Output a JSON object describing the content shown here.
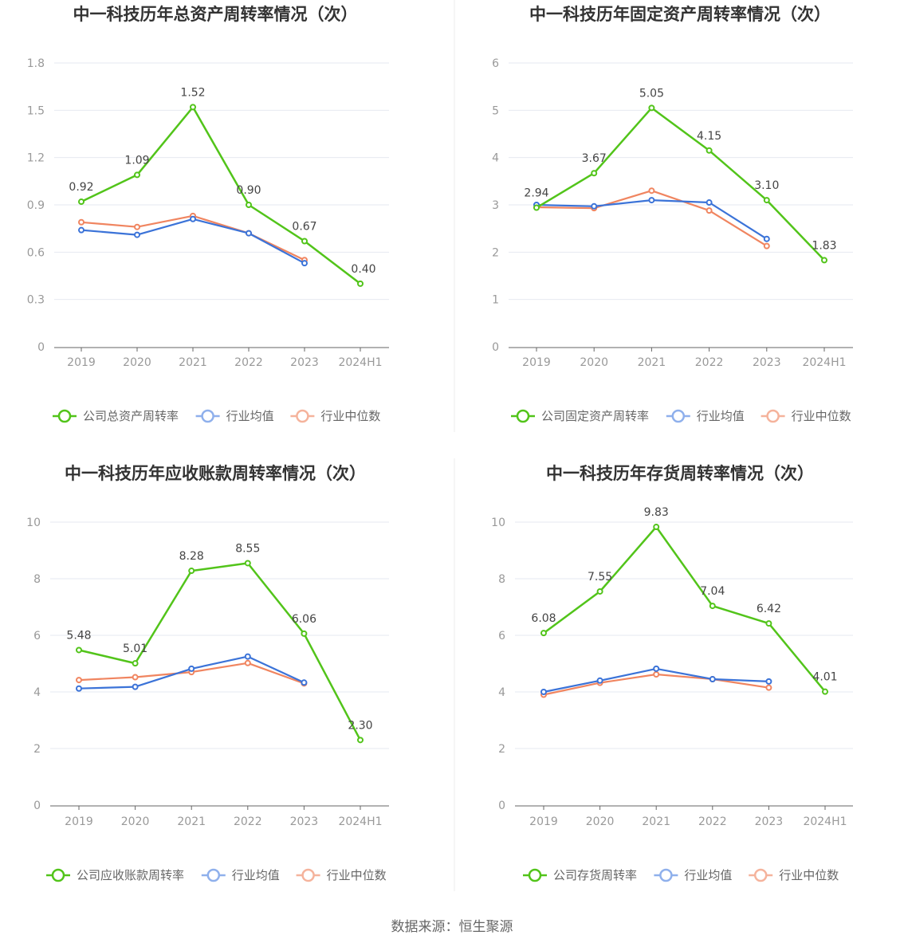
{
  "source": "数据来源：恒生聚源",
  "colors": {
    "company": "#52c41a",
    "avg": "#3b73d8",
    "median": "#f08560",
    "grid": "#e6e9f0",
    "axis": "#666666"
  },
  "chart_data": [
    {
      "type": "line",
      "title": "中一科技历年总资产周转率情况（次）",
      "categories": [
        "2019",
        "2020",
        "2021",
        "2022",
        "2023",
        "2024H1"
      ],
      "ylim": [
        0,
        1.8
      ],
      "yticks": [
        "0",
        "0.3",
        "0.6",
        "0.9",
        "1.2",
        "1.5",
        "1.8"
      ],
      "ytick_values": [
        0,
        0.3,
        0.6,
        0.9,
        1.2,
        1.5,
        1.8
      ],
      "grid": true,
      "legend_position": "bottom",
      "series": [
        {
          "name": "公司总资产周转率",
          "role": "company",
          "values": [
            0.92,
            1.09,
            1.52,
            0.9,
            0.67,
            0.4
          ],
          "labels": [
            "0.92",
            "1.09",
            "1.52",
            "0.90",
            "0.67",
            "0.40"
          ]
        },
        {
          "name": "行业均值",
          "role": "avg",
          "values": [
            0.74,
            0.71,
            0.81,
            0.72,
            0.53,
            null
          ]
        },
        {
          "name": "行业中位数",
          "role": "median",
          "values": [
            0.79,
            0.76,
            0.83,
            0.72,
            0.55,
            null
          ]
        }
      ]
    },
    {
      "type": "line",
      "title": "中一科技历年固定资产周转率情况（次）",
      "categories": [
        "2019",
        "2020",
        "2021",
        "2022",
        "2023",
        "2024H1"
      ],
      "ylim": [
        0,
        6
      ],
      "yticks": [
        "0",
        "1",
        "2",
        "3",
        "4",
        "5",
        "6"
      ],
      "ytick_values": [
        0,
        1,
        2,
        3,
        4,
        5,
        6
      ],
      "grid": true,
      "legend_position": "bottom",
      "series": [
        {
          "name": "公司固定资产周转率",
          "role": "company",
          "values": [
            2.94,
            3.67,
            5.05,
            4.15,
            3.1,
            1.83
          ],
          "labels": [
            "2.94",
            "3.67",
            "5.05",
            "4.15",
            "3.10",
            "1.83"
          ]
        },
        {
          "name": "行业均值",
          "role": "avg",
          "values": [
            3.0,
            2.97,
            3.1,
            3.05,
            2.28,
            null
          ]
        },
        {
          "name": "行业中位数",
          "role": "median",
          "values": [
            2.95,
            2.93,
            3.3,
            2.88,
            2.13,
            null
          ]
        }
      ]
    },
    {
      "type": "line",
      "title": "中一科技历年应收账款周转率情况（次）",
      "categories": [
        "2019",
        "2020",
        "2021",
        "2022",
        "2023",
        "2024H1"
      ],
      "ylim": [
        0,
        10
      ],
      "yticks": [
        "0",
        "2",
        "4",
        "6",
        "8",
        "10"
      ],
      "ytick_values": [
        0,
        2,
        4,
        6,
        8,
        10
      ],
      "grid": true,
      "legend_position": "bottom",
      "series": [
        {
          "name": "公司应收账款周转率",
          "role": "company",
          "values": [
            5.48,
            5.01,
            8.28,
            8.55,
            6.06,
            2.3
          ],
          "labels": [
            "5.48",
            "5.01",
            "8.28",
            "8.55",
            "6.06",
            "2.30"
          ]
        },
        {
          "name": "行业均值",
          "role": "avg",
          "values": [
            4.12,
            4.18,
            4.82,
            5.25,
            4.33,
            null
          ]
        },
        {
          "name": "行业中位数",
          "role": "median",
          "values": [
            4.42,
            4.52,
            4.7,
            5.02,
            4.3,
            null
          ]
        }
      ]
    },
    {
      "type": "line",
      "title": "中一科技历年存货周转率情况（次）",
      "categories": [
        "2019",
        "2020",
        "2021",
        "2022",
        "2023",
        "2024H1"
      ],
      "ylim": [
        0,
        10
      ],
      "yticks": [
        "0",
        "2",
        "4",
        "6",
        "8",
        "10"
      ],
      "ytick_values": [
        0,
        2,
        4,
        6,
        8,
        10
      ],
      "grid": true,
      "legend_position": "bottom",
      "series": [
        {
          "name": "公司存货周转率",
          "role": "company",
          "values": [
            6.08,
            7.55,
            9.83,
            7.04,
            6.42,
            4.01
          ],
          "labels": [
            "6.08",
            "7.55",
            "9.83",
            "7.04",
            "6.42",
            "4.01"
          ]
        },
        {
          "name": "行业均值",
          "role": "avg",
          "values": [
            4.0,
            4.4,
            4.82,
            4.45,
            4.37,
            null
          ]
        },
        {
          "name": "行业中位数",
          "role": "median",
          "values": [
            3.9,
            4.32,
            4.62,
            4.45,
            4.15,
            null
          ]
        }
      ]
    }
  ]
}
